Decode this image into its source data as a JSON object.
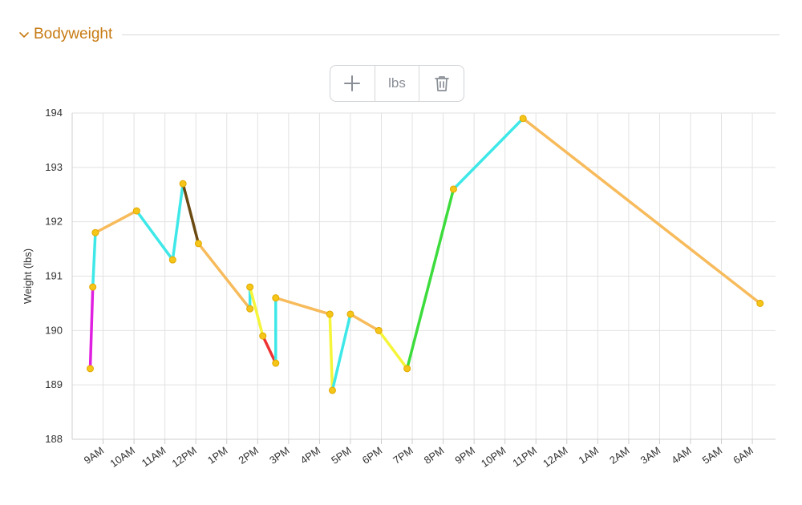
{
  "section": {
    "title": "Bodyweight",
    "accent_color": "#c77a12",
    "collapse_icon": "chevron-down-icon"
  },
  "toolbar": {
    "add_icon": "plus-icon",
    "unit_label": "lbs",
    "delete_icon": "trash-icon"
  },
  "chart_data": {
    "type": "line",
    "ylabel": "Weight (lbs)",
    "xlabel": "",
    "ylim": [
      188,
      194
    ],
    "y_ticks": [
      188,
      189,
      190,
      191,
      192,
      193,
      194
    ],
    "x_range": [
      "8:00",
      "30:45"
    ],
    "x_tick_labels": [
      "9AM",
      "10AM",
      "11AM",
      "12PM",
      "1PM",
      "2PM",
      "3PM",
      "4PM",
      "5PM",
      "6PM",
      "7PM",
      "8PM",
      "9PM",
      "10PM",
      "11PM",
      "12AM",
      "1AM",
      "2AM",
      "3AM",
      "4AM",
      "5AM",
      "6AM"
    ],
    "x_tick_times": [
      "9:00",
      "10:00",
      "11:00",
      "12:00",
      "13:00",
      "14:00",
      "15:00",
      "16:00",
      "17:00",
      "18:00",
      "19:00",
      "20:00",
      "21:00",
      "22:00",
      "23:00",
      "24:00",
      "25:00",
      "26:00",
      "27:00",
      "28:00",
      "29:00",
      "30:00"
    ],
    "grid": true,
    "point_color": "#f5c518",
    "points": [
      {
        "x": "8:35",
        "y": 189.3
      },
      {
        "x": "8:40",
        "y": 190.8
      },
      {
        "x": "8:45",
        "y": 191.8
      },
      {
        "x": "10:05",
        "y": 192.2
      },
      {
        "x": "11:15",
        "y": 191.3
      },
      {
        "x": "11:35",
        "y": 192.7
      },
      {
        "x": "12:05",
        "y": 191.6
      },
      {
        "x": "13:45",
        "y": 190.4
      },
      {
        "x": "13:45",
        "y": 190.8
      },
      {
        "x": "14:10",
        "y": 189.9
      },
      {
        "x": "14:35",
        "y": 189.4
      },
      {
        "x": "14:35",
        "y": 190.6
      },
      {
        "x": "16:20",
        "y": 190.3
      },
      {
        "x": "16:25",
        "y": 188.9
      },
      {
        "x": "17:00",
        "y": 190.3
      },
      {
        "x": "17:55",
        "y": 190.0
      },
      {
        "x": "18:50",
        "y": 189.3
      },
      {
        "x": "20:20",
        "y": 192.6
      },
      {
        "x": "22:35",
        "y": 193.9
      },
      {
        "x": "30:15",
        "y": 190.5
      }
    ],
    "segment_colors": [
      "#e020e0",
      "#3fe8e8",
      "#f7bb5c",
      "#3fe8e8",
      "#3fe8e8",
      "#6b4a12",
      "#f7bb5c",
      "#3fe8e8",
      "#f5f53a",
      "#ee3333",
      "#3fe8e8",
      "#f7bb5c",
      "#f5f53a",
      "#3fe8e8",
      "#f7bb5c",
      "#f5f53a",
      "#3ddc3d",
      "#3fe8e8",
      "#f7bb5c"
    ]
  }
}
